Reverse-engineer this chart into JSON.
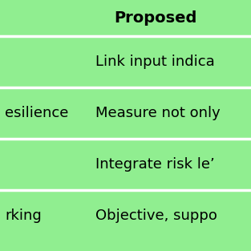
{
  "bg_color": "#90EE90",
  "divider_color": "#ffffff",
  "header_text": "Proposed",
  "header_fontsize": 14,
  "rows": [
    {
      "col1": "",
      "col2": "Link input indica"
    },
    {
      "col1": "esilience",
      "col2": "Measure not only"
    },
    {
      "col1": "",
      "col2": "Integrate risk le’"
    },
    {
      "col1": "rking",
      "col2": "Objective, suppo"
    }
  ],
  "row_fontsize": 13,
  "fig_width": 3.13,
  "fig_height": 3.13,
  "dpi": 100
}
